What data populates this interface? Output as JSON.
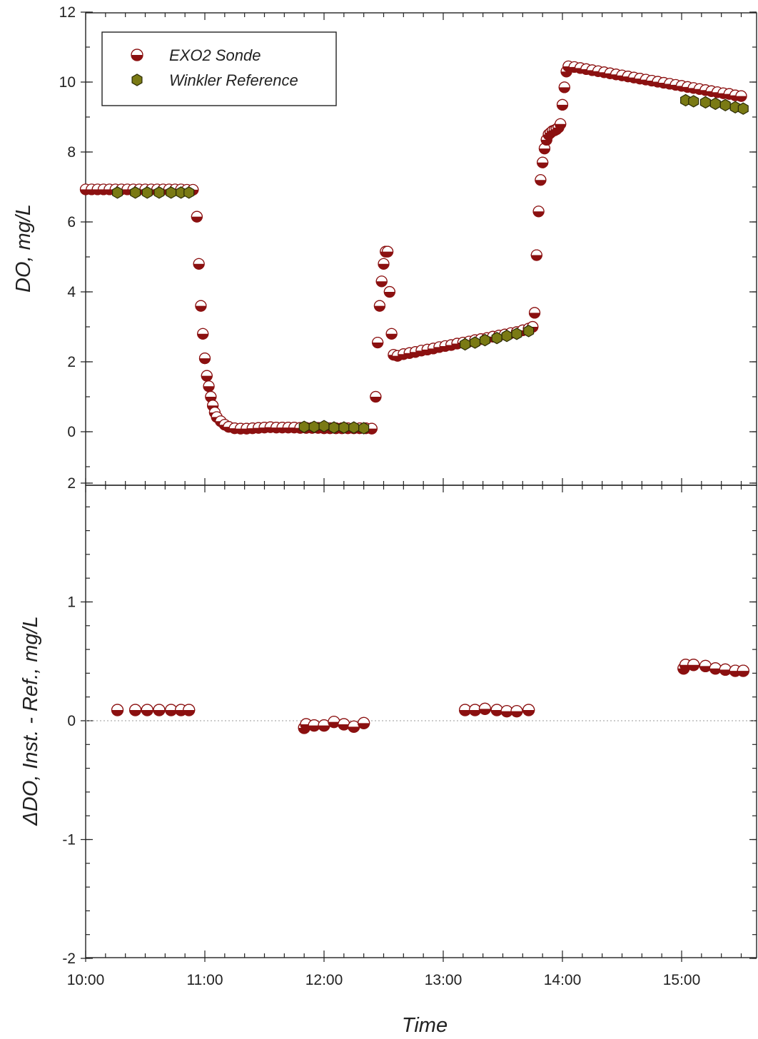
{
  "chart_data": [
    {
      "type": "scatter",
      "panel": "top",
      "xlabel": "",
      "ylabel": "DO, mg/L",
      "xlim": [
        "10:00",
        "15:30"
      ],
      "ylim": [
        -1.5,
        12
      ],
      "yticks": [
        0,
        2,
        4,
        6,
        8,
        10,
        12
      ],
      "xticks": [
        "10:00",
        "11:00",
        "12:00",
        "13:00",
        "14:00",
        "15:00"
      ],
      "legend_position": "top-left",
      "series": [
        {
          "name": "EXO2 Sonde",
          "color": "#8b1010",
          "marker": "half-filled circle",
          "points": [
            [
              "10:00",
              6.93
            ],
            [
              "10:03",
              6.93
            ],
            [
              "10:06",
              6.93
            ],
            [
              "10:09",
              6.93
            ],
            [
              "10:12",
              6.93
            ],
            [
              "10:15",
              6.93
            ],
            [
              "10:18",
              6.93
            ],
            [
              "10:21",
              6.93
            ],
            [
              "10:24",
              6.93
            ],
            [
              "10:27",
              6.93
            ],
            [
              "10:30",
              6.93
            ],
            [
              "10:33",
              6.93
            ],
            [
              "10:36",
              6.93
            ],
            [
              "10:39",
              6.93
            ],
            [
              "10:42",
              6.93
            ],
            [
              "10:45",
              6.93
            ],
            [
              "10:48",
              6.93
            ],
            [
              "10:51",
              6.92
            ],
            [
              "10:54",
              6.92
            ],
            [
              "10:56",
              6.15
            ],
            [
              "10:57",
              4.8
            ],
            [
              "10:58",
              3.6
            ],
            [
              "10:59",
              2.8
            ],
            [
              "11:00",
              2.1
            ],
            [
              "11:01",
              1.6
            ],
            [
              "11:02",
              1.3
            ],
            [
              "11:03",
              1.0
            ],
            [
              "11:04",
              0.75
            ],
            [
              "11:05",
              0.55
            ],
            [
              "11:06",
              0.42
            ],
            [
              "11:08",
              0.3
            ],
            [
              "11:10",
              0.2
            ],
            [
              "11:12",
              0.14
            ],
            [
              "11:15",
              0.1
            ],
            [
              "11:18",
              0.09
            ],
            [
              "11:21",
              0.09
            ],
            [
              "11:24",
              0.1
            ],
            [
              "11:27",
              0.11
            ],
            [
              "11:30",
              0.12
            ],
            [
              "11:33",
              0.13
            ],
            [
              "11:36",
              0.12
            ],
            [
              "11:39",
              0.12
            ],
            [
              "11:42",
              0.12
            ],
            [
              "11:45",
              0.12
            ],
            [
              "11:48",
              0.11
            ],
            [
              "11:51",
              0.11
            ],
            [
              "11:54",
              0.11
            ],
            [
              "11:57",
              0.11
            ],
            [
              "12:00",
              0.1
            ],
            [
              "12:03",
              0.1
            ],
            [
              "12:06",
              0.1
            ],
            [
              "12:09",
              0.1
            ],
            [
              "12:12",
              0.1
            ],
            [
              "12:15",
              0.1
            ],
            [
              "12:18",
              0.1
            ],
            [
              "12:21",
              0.1
            ],
            [
              "12:24",
              0.09
            ],
            [
              "12:26",
              1.0
            ],
            [
              "12:27",
              2.55
            ],
            [
              "12:28",
              3.6
            ],
            [
              "12:29",
              4.3
            ],
            [
              "12:30",
              4.8
            ],
            [
              "12:31",
              5.15
            ],
            [
              "12:32",
              5.15
            ],
            [
              "12:33",
              4.0
            ],
            [
              "12:34",
              2.8
            ],
            [
              "12:35",
              2.2
            ],
            [
              "12:37",
              2.17
            ],
            [
              "12:40",
              2.22
            ],
            [
              "12:43",
              2.25
            ],
            [
              "12:46",
              2.28
            ],
            [
              "12:49",
              2.32
            ],
            [
              "12:52",
              2.35
            ],
            [
              "12:55",
              2.38
            ],
            [
              "12:58",
              2.42
            ],
            [
              "13:01",
              2.45
            ],
            [
              "13:04",
              2.48
            ],
            [
              "13:07",
              2.52
            ],
            [
              "13:10",
              2.55
            ],
            [
              "13:13",
              2.58
            ],
            [
              "13:16",
              2.62
            ],
            [
              "13:19",
              2.65
            ],
            [
              "13:22",
              2.68
            ],
            [
              "13:25",
              2.72
            ],
            [
              "13:28",
              2.75
            ],
            [
              "13:31",
              2.78
            ],
            [
              "13:34",
              2.82
            ],
            [
              "13:37",
              2.85
            ],
            [
              "13:40",
              2.9
            ],
            [
              "13:43",
              2.95
            ],
            [
              "13:45",
              3.0
            ],
            [
              "13:46",
              3.4
            ],
            [
              "13:47",
              5.05
            ],
            [
              "13:48",
              6.3
            ],
            [
              "13:49",
              7.2
            ],
            [
              "13:50",
              7.7
            ],
            [
              "13:51",
              8.1
            ],
            [
              "13:52",
              8.35
            ],
            [
              "13:53",
              8.5
            ],
            [
              "13:54",
              8.55
            ],
            [
              "13:55",
              8.6
            ],
            [
              "13:56",
              8.62
            ],
            [
              "13:57",
              8.65
            ],
            [
              "13:58",
              8.7
            ],
            [
              "13:59",
              8.8
            ],
            [
              "14:00",
              9.35
            ],
            [
              "14:01",
              9.85
            ],
            [
              "14:02",
              10.3
            ],
            [
              "14:03",
              10.45
            ],
            [
              "14:06",
              10.43
            ],
            [
              "14:09",
              10.4
            ],
            [
              "14:12",
              10.37
            ],
            [
              "14:15",
              10.34
            ],
            [
              "14:18",
              10.31
            ],
            [
              "14:21",
              10.28
            ],
            [
              "14:24",
              10.25
            ],
            [
              "14:27",
              10.22
            ],
            [
              "14:30",
              10.19
            ],
            [
              "14:33",
              10.16
            ],
            [
              "14:36",
              10.13
            ],
            [
              "14:39",
              10.1
            ],
            [
              "14:42",
              10.07
            ],
            [
              "14:45",
              10.04
            ],
            [
              "14:48",
              10.01
            ],
            [
              "14:51",
              9.98
            ],
            [
              "14:54",
              9.95
            ],
            [
              "14:57",
              9.92
            ],
            [
              "15:00",
              9.89
            ],
            [
              "15:03",
              9.86
            ],
            [
              "15:06",
              9.83
            ],
            [
              "15:09",
              9.8
            ],
            [
              "15:12",
              9.77
            ],
            [
              "15:15",
              9.74
            ],
            [
              "15:18",
              9.71
            ],
            [
              "15:21",
              9.68
            ],
            [
              "15:24",
              9.66
            ],
            [
              "15:27",
              9.62
            ],
            [
              "15:30",
              9.6
            ]
          ]
        },
        {
          "name": "Winkler Reference",
          "color": "#7a7a14",
          "marker": "hexagon",
          "points": [
            [
              "10:16",
              6.84
            ],
            [
              "10:25",
              6.84
            ],
            [
              "10:31",
              6.84
            ],
            [
              "10:37",
              6.84
            ],
            [
              "10:43",
              6.84
            ],
            [
              "10:48",
              6.84
            ],
            [
              "10:52",
              6.84
            ],
            [
              "11:50",
              0.14
            ],
            [
              "11:55",
              0.14
            ],
            [
              "12:00",
              0.16
            ],
            [
              "12:05",
              0.12
            ],
            [
              "12:10",
              0.12
            ],
            [
              "12:15",
              0.12
            ],
            [
              "12:20",
              0.1
            ],
            [
              "13:11",
              2.5
            ],
            [
              "13:16",
              2.55
            ],
            [
              "13:21",
              2.62
            ],
            [
              "13:27",
              2.68
            ],
            [
              "13:32",
              2.74
            ],
            [
              "13:37",
              2.8
            ],
            [
              "13:43",
              2.88
            ],
            [
              "15:02",
              9.48
            ],
            [
              "15:06",
              9.45
            ],
            [
              "15:12",
              9.42
            ],
            [
              "15:17",
              9.38
            ],
            [
              "15:22",
              9.34
            ],
            [
              "15:27",
              9.28
            ],
            [
              "15:31",
              9.24
            ]
          ]
        }
      ]
    },
    {
      "type": "scatter",
      "panel": "bottom",
      "xlabel": "Time",
      "ylabel": "ΔDO, Inst. - Ref., mg/L",
      "xlim": [
        "10:00",
        "15:30"
      ],
      "ylim": [
        -2,
        2
      ],
      "yticks": [
        -2,
        -1,
        0,
        1,
        2
      ],
      "xticks": [
        "10:00",
        "11:00",
        "12:00",
        "13:00",
        "14:00",
        "15:00"
      ],
      "reference_line": 0,
      "series": [
        {
          "name": "",
          "color": "#8b1010",
          "marker": "half-filled circle",
          "points": [
            [
              "10:16",
              0.09
            ],
            [
              "10:25",
              0.09
            ],
            [
              "10:31",
              0.09
            ],
            [
              "10:37",
              0.09
            ],
            [
              "10:43",
              0.09
            ],
            [
              "10:48",
              0.09
            ],
            [
              "10:52",
              0.09
            ],
            [
              "11:50",
              -0.06
            ],
            [
              "11:51",
              -0.03
            ],
            [
              "11:55",
              -0.04
            ],
            [
              "12:00",
              -0.04
            ],
            [
              "12:05",
              -0.01
            ],
            [
              "12:10",
              -0.03
            ],
            [
              "12:15",
              -0.05
            ],
            [
              "12:20",
              -0.02
            ],
            [
              "13:11",
              0.09
            ],
            [
              "13:16",
              0.09
            ],
            [
              "13:21",
              0.1
            ],
            [
              "13:27",
              0.09
            ],
            [
              "13:32",
              0.08
            ],
            [
              "13:37",
              0.08
            ],
            [
              "13:43",
              0.09
            ],
            [
              "15:01",
              0.44
            ],
            [
              "15:02",
              0.47
            ],
            [
              "15:06",
              0.47
            ],
            [
              "15:12",
              0.46
            ],
            [
              "15:17",
              0.44
            ],
            [
              "15:22",
              0.43
            ],
            [
              "15:27",
              0.42
            ],
            [
              "15:31",
              0.42
            ]
          ]
        }
      ]
    }
  ]
}
